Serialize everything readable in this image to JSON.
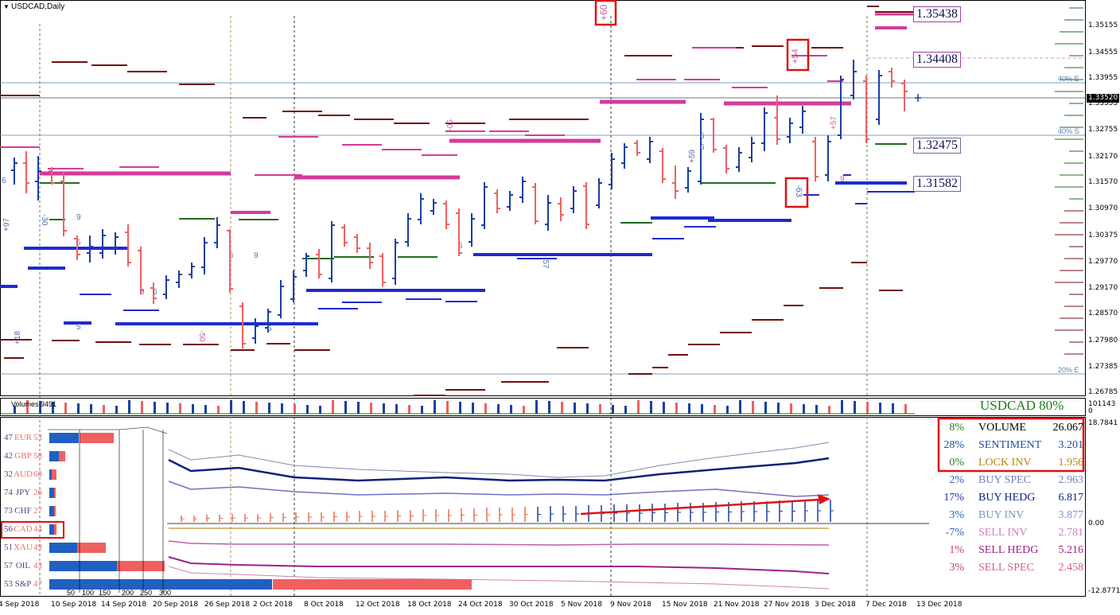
{
  "chart": {
    "title": "USDCAD,Daily",
    "current_price": "1.33520",
    "price_ticks": [
      "1.35155",
      "1.34555",
      "1.33955",
      "1.33355",
      "1.32755",
      "1.32170",
      "1.31570",
      "1.30970",
      "1.30375",
      "1.29770",
      "1.29170",
      "1.28570",
      "1.27980",
      "1.27385",
      "1.26785"
    ],
    "level_labels": [
      "1.35438",
      "1.34408",
      "1.32475",
      "1.31582"
    ],
    "pct_labels": [
      "40% E",
      "40% S",
      "20% E"
    ],
    "annotations": [
      "+60",
      "+54",
      "-63",
      "+57",
      "+59",
      "-57",
      "+05",
      "+97",
      "-30",
      "+18",
      "-50"
    ],
    "small_numbers": [
      "6",
      "9",
      "5",
      "5",
      "6",
      "6",
      "9",
      "6",
      "5",
      "6",
      "6",
      "9",
      "5"
    ]
  },
  "volume_panel": {
    "label": "Volumes 9491",
    "top_value": "101143",
    "zero_value": "0",
    "watermark": "USDCAD 80%"
  },
  "indicator_panel": {
    "top_value": "18.7841",
    "zero_value": "0.00",
    "bottom_value": "-12.8771",
    "scale_ticks": [
      "50",
      "100",
      "150",
      "200",
      "250",
      "300"
    ],
    "currencies": [
      {
        "left": "47",
        "name": "EUR",
        "right": "53",
        "name_color": "#e87070"
      },
      {
        "left": "42",
        "name": "GBP",
        "right": "58",
        "name_color": "#e87070"
      },
      {
        "left": "32",
        "name": "AUD",
        "right": "68",
        "name_color": "#e87070"
      },
      {
        "left": "74",
        "name": "JPY",
        "right": "26",
        "name_color": "#4a4a8a"
      },
      {
        "left": "73",
        "name": "CHF",
        "right": "27",
        "name_color": "#4a4a8a"
      },
      {
        "left": "56",
        "name": "CAD",
        "right": "44",
        "name_color": "#e87070"
      },
      {
        "left": "51",
        "name": "XAU",
        "right": "49",
        "name_color": "#e87070"
      },
      {
        "left": "57",
        "name": "OIL",
        "right": "43",
        "name_color": "#4a4a8a"
      },
      {
        "left": "53",
        "name": "S&P",
        "right": "47",
        "name_color": "#4a4a8a"
      }
    ],
    "stats": [
      {
        "pct": "8%",
        "name": "VOLUME",
        "value": "26.067",
        "pct_color": "#208020",
        "name_color": "#000000",
        "value_color": "#000000"
      },
      {
        "pct": "28%",
        "name": "SENTIMENT",
        "value": "3.201",
        "pct_color": "#2050a0",
        "name_color": "#2050a0",
        "value_color": "#2050a0"
      },
      {
        "pct": "0%",
        "name": "LOCK INV",
        "value": "1.956",
        "pct_color": "#208020",
        "name_color": "#b08a10",
        "value_color": "#b08a10"
      },
      {
        "pct": "2%",
        "name": "BUY SPEC",
        "value": "2.963",
        "pct_color": "#3060c0",
        "name_color": "#7080c0",
        "value_color": "#7080c0"
      },
      {
        "pct": "17%",
        "name": "BUY HEDG",
        "value": "6.817",
        "pct_color": "#2030a0",
        "name_color": "#102080",
        "value_color": "#102080"
      },
      {
        "pct": "3%",
        "name": "BUY INV",
        "value": "3.877",
        "pct_color": "#3060c0",
        "name_color": "#8090c8",
        "value_color": "#8090c8"
      },
      {
        "pct": "-7%",
        "name": "SELL INV",
        "value": "2.781",
        "pct_color": "#3060c0",
        "name_color": "#d080c0",
        "value_color": "#d080c0"
      },
      {
        "pct": "1%",
        "name": "SELL HEDG",
        "value": "5.216",
        "pct_color": "#d04060",
        "name_color": "#a02080",
        "value_color": "#a02080"
      },
      {
        "pct": "3%",
        "name": "SELL SPEC",
        "value": "2.458",
        "pct_color": "#d04060",
        "name_color": "#d06090",
        "value_color": "#d06090"
      }
    ]
  },
  "dates": [
    "4 Sep 2018",
    "10 Sep 2018",
    "14 Sep 2018",
    "20 Sep 2018",
    "26 Sep 2018",
    "2 Oct 2018",
    "8 Oct 2018",
    "12 Oct 2018",
    "18 Oct 2018",
    "24 Oct 2018",
    "30 Oct 2018",
    "5 Nov 2018",
    "9 Nov 2018",
    "15 Nov 2018",
    "21 Nov 2018",
    "27 Nov 2018",
    "3 Dec 2018",
    "7 Dec 2018",
    "13 Dec 2018"
  ],
  "colors": {
    "bull": "#1a3fa0",
    "bear": "#f06060",
    "pink": "#d43a9c",
    "maroon": "#701010",
    "blue_level": "#1f2ad0",
    "green_level": "#1f6d1f"
  }
}
